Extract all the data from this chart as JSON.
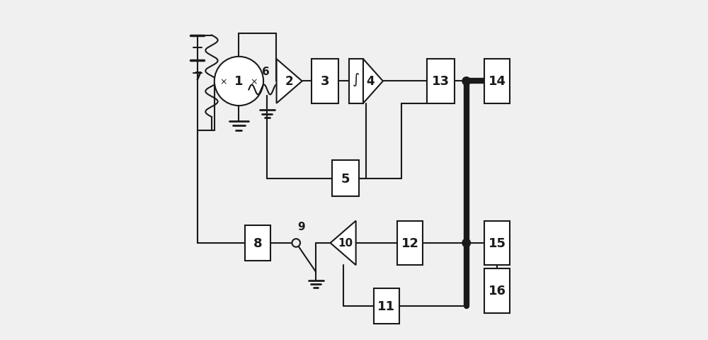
{
  "bg_color": "#f0f0f0",
  "line_color": "#1a1a1a",
  "box_color": "#ffffff",
  "figsize": [
    10.0,
    4.81
  ],
  "dpi": 100
}
